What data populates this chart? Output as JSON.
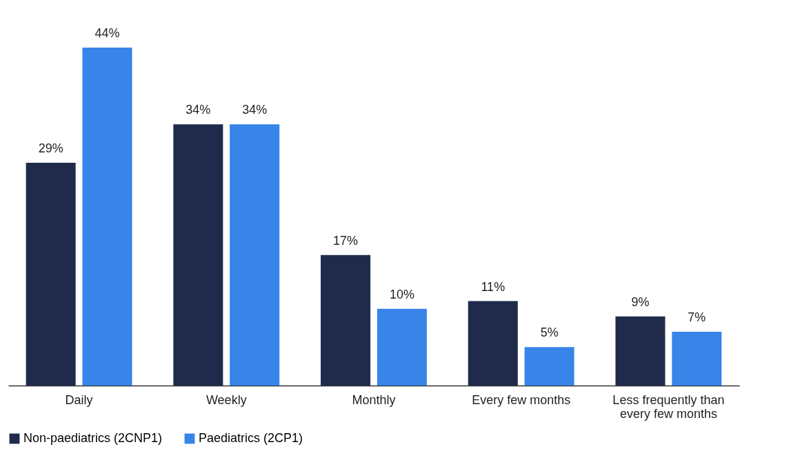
{
  "chart_data": {
    "type": "bar",
    "categories": [
      "Daily",
      "Weekly",
      "Monthly",
      "Every few months",
      "Less frequently than every few months"
    ],
    "series": [
      {
        "name": "Non-paediatrics (2CNP1)",
        "color": "#202b4c",
        "values": [
          29,
          34,
          17,
          11,
          9
        ],
        "value_labels": [
          "29%",
          "34%",
          "17%",
          "11%",
          "9%"
        ]
      },
      {
        "name": "Paediatrics (2CP1)",
        "color": "#3884e8",
        "values": [
          44,
          34,
          10,
          5,
          7
        ],
        "value_labels": [
          "44%",
          "34%",
          "10%",
          "5%",
          "7%"
        ]
      }
    ],
    "legend": "bottom"
  }
}
